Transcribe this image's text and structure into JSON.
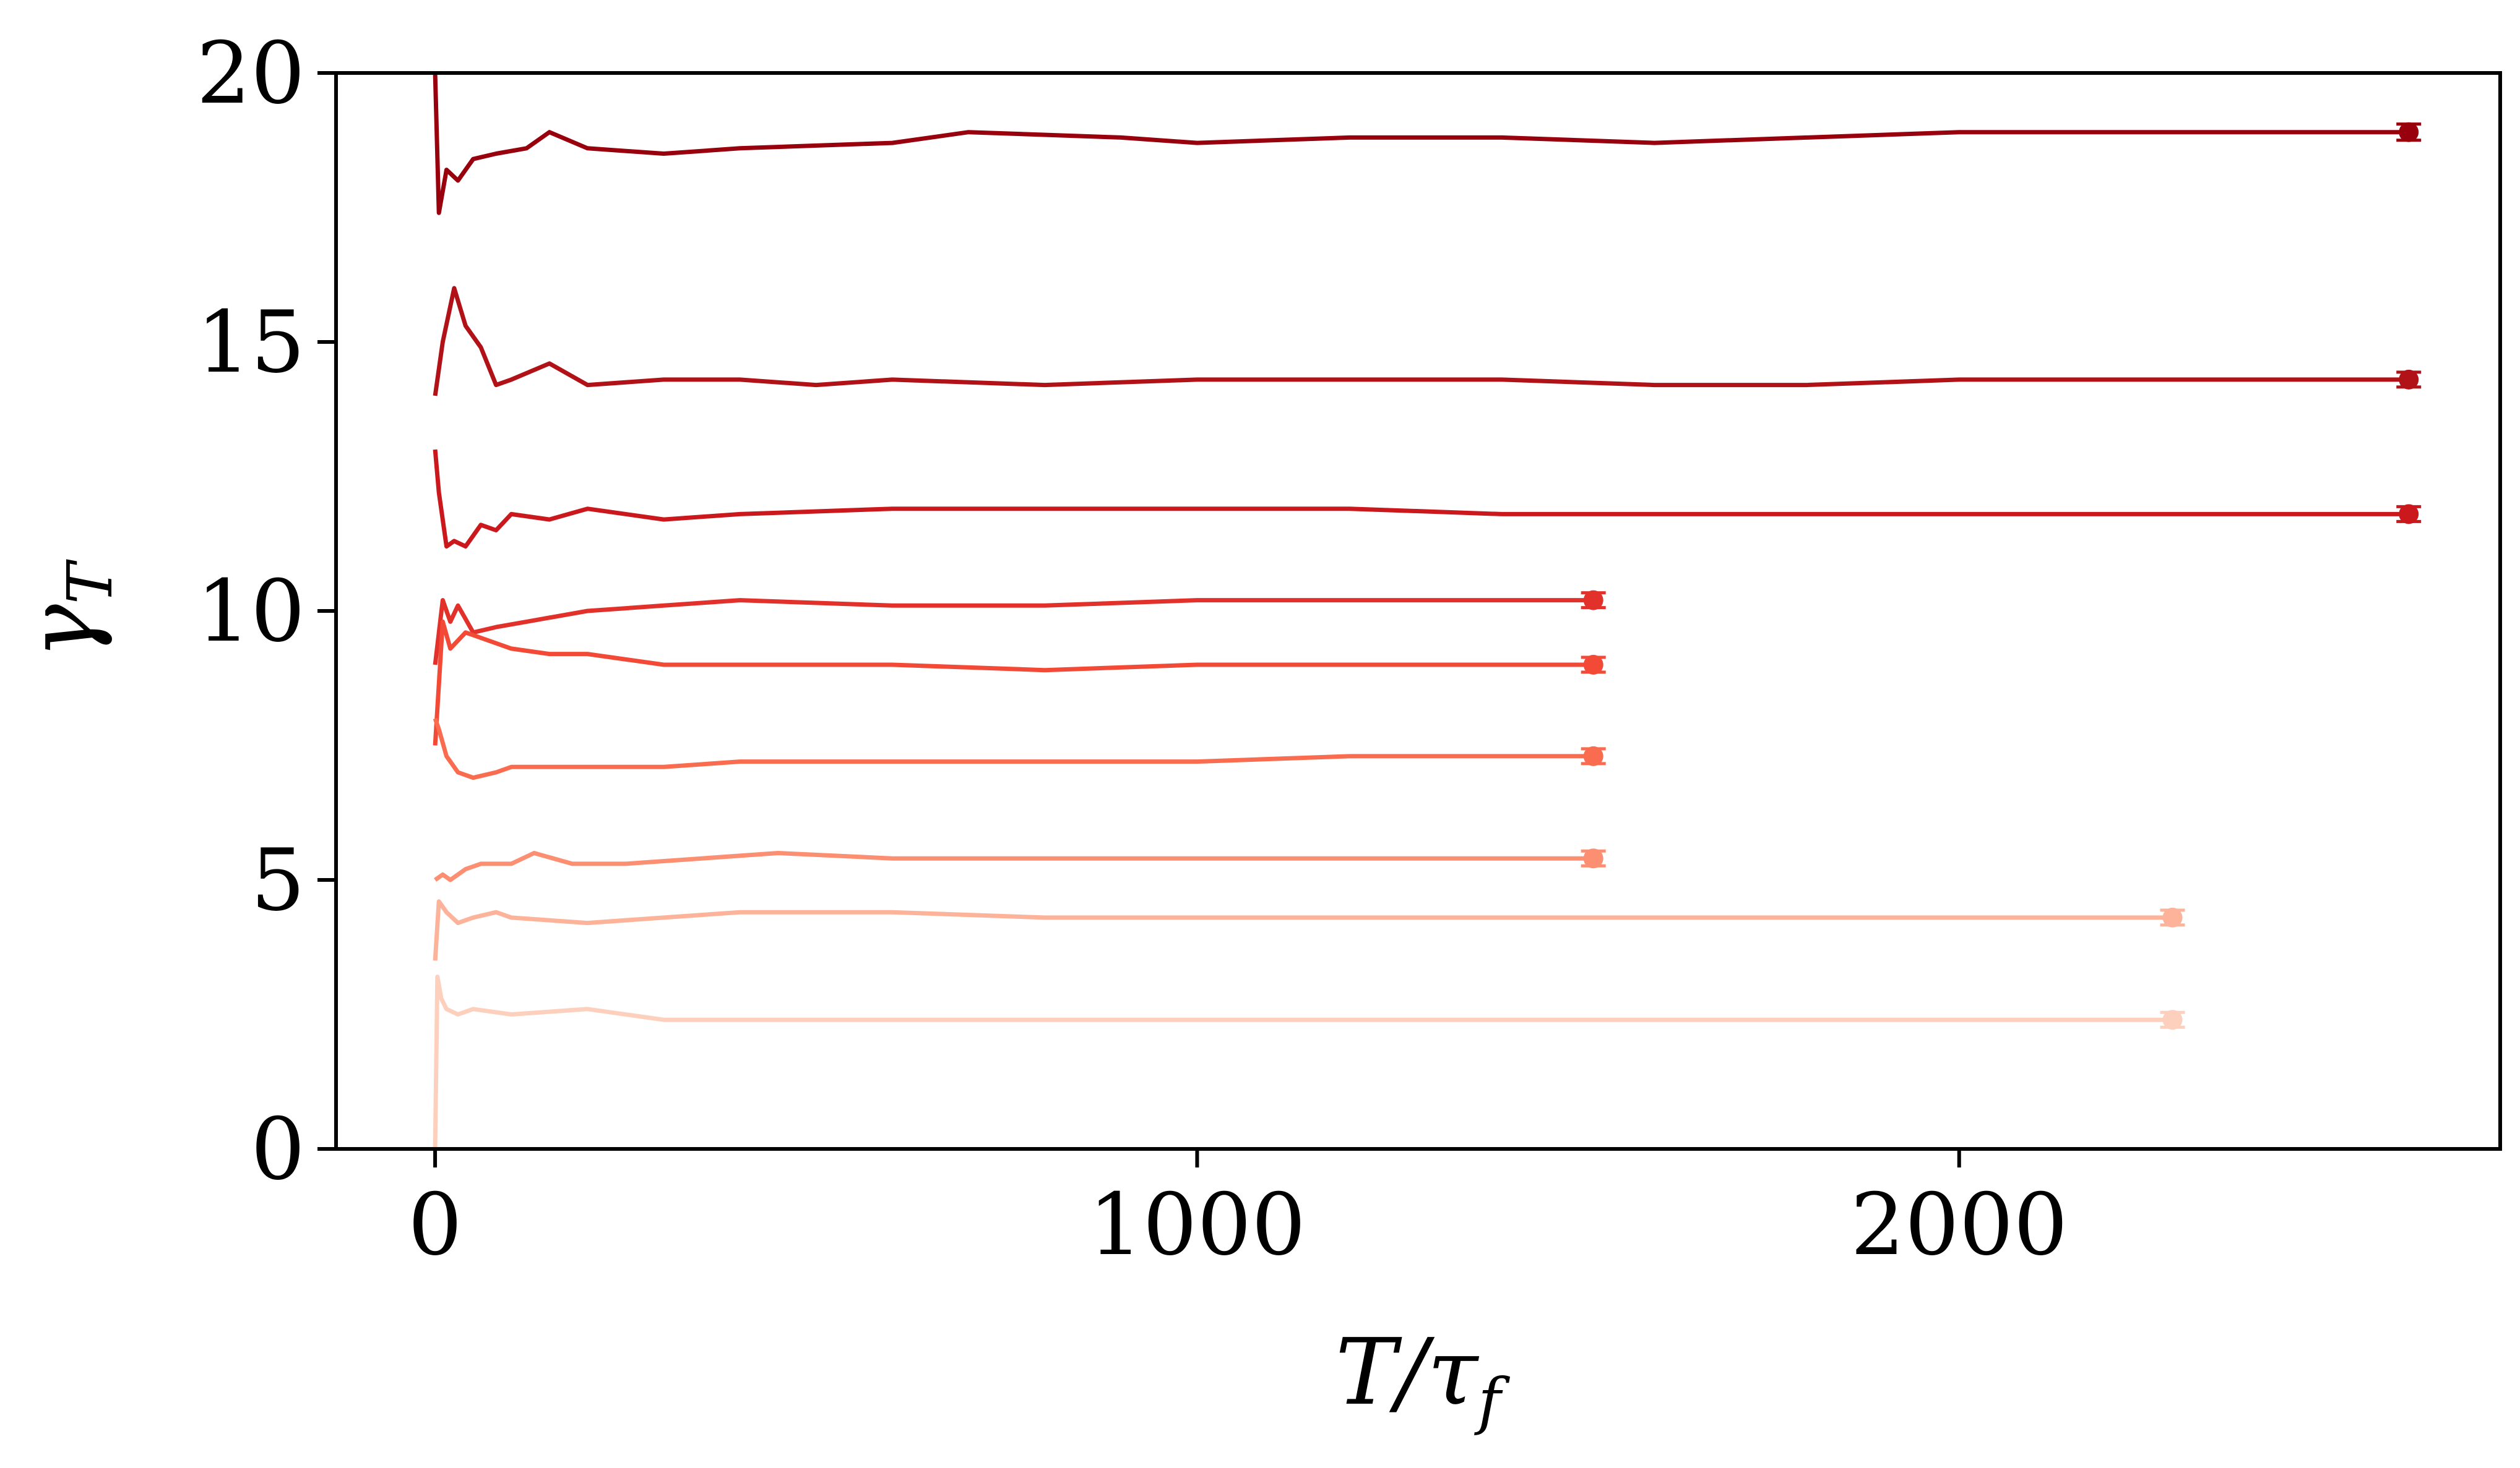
{
  "chart_data": {
    "type": "line",
    "xlabel": "T/τ_f",
    "ylabel": "γ_T",
    "xlim": [
      -130,
      2710
    ],
    "ylim": [
      0,
      20
    ],
    "xticks": [
      0,
      1000,
      2000
    ],
    "yticks": [
      0,
      5,
      10,
      15,
      20
    ],
    "grid": false,
    "legend": "none",
    "series": [
      {
        "color": "#99000d",
        "x": [
          0,
          5,
          15,
          30,
          50,
          80,
          120,
          150,
          200,
          300,
          400,
          600,
          700,
          900,
          1000,
          1200,
          1400,
          1600,
          1800,
          2000,
          2200,
          2400,
          2590
        ],
        "y": [
          20.0,
          17.4,
          18.2,
          18.0,
          18.4,
          18.5,
          18.6,
          18.9,
          18.6,
          18.5,
          18.6,
          18.7,
          18.9,
          18.8,
          18.7,
          18.8,
          18.8,
          18.7,
          18.8,
          18.9,
          18.9,
          18.9,
          18.9
        ],
        "end_error": 0.15
      },
      {
        "color": "#b11218",
        "x": [
          0,
          10,
          25,
          40,
          60,
          80,
          100,
          150,
          200,
          300,
          400,
          500,
          600,
          800,
          1000,
          1200,
          1400,
          1600,
          1800,
          2000,
          2200,
          2400,
          2590
        ],
        "y": [
          14.0,
          15.0,
          16.0,
          15.3,
          14.9,
          14.2,
          14.3,
          14.6,
          14.2,
          14.3,
          14.3,
          14.2,
          14.3,
          14.2,
          14.3,
          14.3,
          14.3,
          14.2,
          14.2,
          14.3,
          14.3,
          14.3,
          14.3
        ],
        "end_error": 0.12
      },
      {
        "color": "#cb181d",
        "x": [
          0,
          5,
          15,
          25,
          40,
          60,
          80,
          100,
          150,
          200,
          300,
          400,
          600,
          800,
          1000,
          1200,
          1400,
          1600,
          1800,
          2000,
          2200,
          2400,
          2590
        ],
        "y": [
          13.0,
          12.2,
          11.2,
          11.3,
          11.2,
          11.6,
          11.5,
          11.8,
          11.7,
          11.9,
          11.7,
          11.8,
          11.9,
          11.9,
          11.9,
          11.9,
          11.8,
          11.8,
          11.8,
          11.8,
          11.8,
          11.8,
          11.8
        ],
        "end_error": 0.1
      },
      {
        "color": "#e2312b",
        "x": [
          0,
          10,
          20,
          30,
          50,
          80,
          120,
          200,
          300,
          400,
          600,
          800,
          1000,
          1200,
          1400,
          1520
        ],
        "y": [
          9.0,
          10.2,
          9.8,
          10.1,
          9.6,
          9.7,
          9.8,
          10.0,
          10.1,
          10.2,
          10.1,
          10.1,
          10.2,
          10.2,
          10.2,
          10.2
        ],
        "end_error": 0.08
      },
      {
        "color": "#f24a36",
        "x": [
          0,
          10,
          20,
          40,
          60,
          100,
          150,
          200,
          300,
          400,
          600,
          800,
          1000,
          1200,
          1400,
          1520
        ],
        "y": [
          7.5,
          9.8,
          9.3,
          9.6,
          9.5,
          9.3,
          9.2,
          9.2,
          9.0,
          9.0,
          9.0,
          8.9,
          9.0,
          9.0,
          9.0,
          9.0
        ],
        "end_error": 0.1
      },
      {
        "color": "#f96c4f",
        "x": [
          0,
          5,
          15,
          30,
          50,
          80,
          100,
          200,
          300,
          400,
          600,
          800,
          1000,
          1200,
          1400,
          1520
        ],
        "y": [
          8.0,
          7.8,
          7.3,
          7.0,
          6.9,
          7.0,
          7.1,
          7.1,
          7.1,
          7.2,
          7.2,
          7.2,
          7.2,
          7.3,
          7.3,
          7.3
        ],
        "end_error": 0.08
      },
      {
        "color": "#fc8e72",
        "x": [
          0,
          10,
          20,
          40,
          60,
          100,
          130,
          180,
          250,
          350,
          450,
          600,
          800,
          1000,
          1200,
          1400,
          1520
        ],
        "y": [
          5.0,
          5.1,
          5.0,
          5.2,
          5.3,
          5.3,
          5.5,
          5.3,
          5.3,
          5.4,
          5.5,
          5.4,
          5.4,
          5.4,
          5.4,
          5.4,
          5.4
        ],
        "end_error": 0.07
      },
      {
        "color": "#fcb399",
        "x": [
          0,
          5,
          15,
          30,
          50,
          80,
          100,
          200,
          300,
          400,
          600,
          800,
          1000,
          1200,
          1400,
          1600,
          1800,
          2000,
          2200,
          2280
        ],
        "y": [
          3.5,
          4.6,
          4.4,
          4.2,
          4.3,
          4.4,
          4.3,
          4.2,
          4.3,
          4.4,
          4.4,
          4.3,
          4.3,
          4.3,
          4.3,
          4.3,
          4.3,
          4.3,
          4.3,
          4.3
        ],
        "end_error": 0.06
      },
      {
        "color": "#fdd0be",
        "x": [
          0,
          3,
          8,
          15,
          30,
          50,
          100,
          200,
          300,
          400,
          600,
          800,
          1000,
          1200,
          1400,
          1600,
          1800,
          2000,
          2200,
          2280
        ],
        "y": [
          0.0,
          3.2,
          2.8,
          2.6,
          2.5,
          2.6,
          2.5,
          2.6,
          2.4,
          2.4,
          2.4,
          2.4,
          2.4,
          2.4,
          2.4,
          2.4,
          2.4,
          2.4,
          2.4,
          2.4
        ],
        "end_error": 0.05
      }
    ]
  }
}
